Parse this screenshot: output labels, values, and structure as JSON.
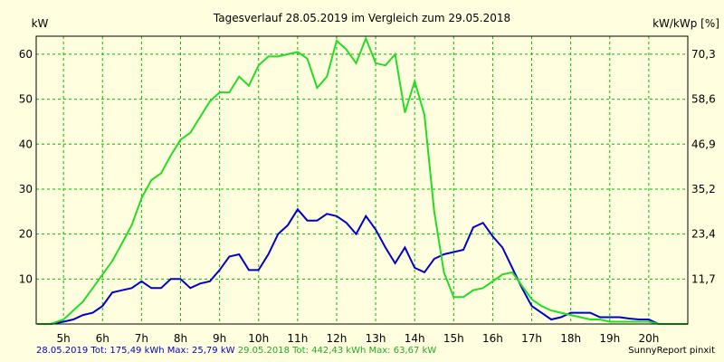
{
  "chart_data": {
    "type": "line",
    "title": "Tagesverlauf 28.05.2019 im Vergleich zum 29.05.2018",
    "ylabel_left": "kW",
    "ylabel_right": "kW/kWp [%]",
    "ylim": [
      0,
      64
    ],
    "y_ticks": [
      10,
      20,
      30,
      40,
      50,
      60
    ],
    "y2_ticks": [
      "11,7",
      "23,4",
      "35,2",
      "46,9",
      "58,6",
      "70,3"
    ],
    "xlim": [
      4.3,
      21.0
    ],
    "x_ticks": [
      5,
      6,
      7,
      8,
      9,
      10,
      11,
      12,
      13,
      14,
      15,
      16,
      17,
      18,
      19,
      20
    ],
    "x_tick_labels": [
      "5h",
      "6h",
      "7h",
      "8h",
      "9h",
      "10h",
      "11h",
      "12h",
      "13h",
      "14h",
      "15h",
      "16h",
      "17h",
      "18h",
      "19h",
      "20h"
    ],
    "grid": true,
    "series": [
      {
        "name": "28.05.2019",
        "color": "#0000cc",
        "x": [
          4.33,
          4.67,
          5.0,
          5.25,
          5.5,
          5.75,
          6.0,
          6.25,
          6.5,
          6.75,
          7.0,
          7.25,
          7.5,
          7.75,
          8.0,
          8.25,
          8.5,
          8.75,
          9.0,
          9.25,
          9.5,
          9.75,
          10.0,
          10.25,
          10.5,
          10.75,
          11.0,
          11.25,
          11.5,
          11.75,
          12.0,
          12.25,
          12.5,
          12.75,
          13.0,
          13.25,
          13.5,
          13.75,
          14.0,
          14.25,
          14.5,
          14.75,
          15.0,
          15.25,
          15.5,
          15.75,
          16.0,
          16.25,
          16.5,
          16.75,
          17.0,
          17.25,
          17.5,
          17.75,
          18.0,
          18.25,
          18.5,
          18.75,
          19.0,
          19.25,
          19.5,
          19.75,
          20.0,
          20.25,
          20.5,
          20.75,
          21.0
        ],
        "values": [
          0,
          0,
          0.5,
          1,
          2,
          2.5,
          4,
          7,
          7.5,
          8,
          9.5,
          8,
          8,
          10,
          10,
          8,
          9,
          9.5,
          12,
          15,
          15.5,
          12,
          12,
          15.5,
          20,
          22,
          25.5,
          23,
          23,
          24.5,
          24,
          22.5,
          20,
          24,
          21,
          17,
          13.5,
          17,
          12.5,
          11.5,
          14.5,
          15.5,
          16,
          16.5,
          21.5,
          22.5,
          19.5,
          17,
          12.5,
          8,
          4,
          2.5,
          1,
          1.5,
          2.5,
          2.5,
          2.5,
          1.5,
          1.5,
          1.5,
          1.2,
          1,
          1,
          0,
          0,
          0,
          0
        ]
      },
      {
        "name": "29.05.2018",
        "color": "#22dd22",
        "x": [
          4.33,
          4.67,
          5.0,
          5.25,
          5.5,
          5.75,
          6.0,
          6.25,
          6.5,
          6.75,
          7.0,
          7.25,
          7.5,
          7.75,
          8.0,
          8.25,
          8.5,
          8.75,
          9.0,
          9.25,
          9.5,
          9.75,
          10.0,
          10.25,
          10.5,
          10.75,
          11.0,
          11.25,
          11.5,
          11.75,
          12.0,
          12.25,
          12.5,
          12.75,
          13.0,
          13.25,
          13.5,
          13.75,
          14.0,
          14.25,
          14.5,
          14.75,
          15.0,
          15.25,
          15.5,
          15.75,
          16.0,
          16.25,
          16.5,
          16.75,
          17.0,
          17.25,
          17.5,
          17.75,
          18.0,
          18.25,
          18.5,
          18.75,
          19.0,
          19.25,
          19.5,
          19.75,
          20.0,
          20.25,
          20.5,
          20.75,
          21.0
        ],
        "values": [
          0,
          0,
          1,
          3,
          5,
          8,
          11,
          14,
          18,
          22,
          28,
          32,
          33.5,
          37.5,
          41,
          42.5,
          46,
          49.5,
          51.5,
          51.5,
          55,
          53,
          57.5,
          59.5,
          59.5,
          60,
          60.5,
          59,
          52.5,
          55,
          63,
          61,
          58,
          63.5,
          58,
          57.5,
          60,
          47,
          54,
          46.5,
          25,
          11.5,
          6,
          6,
          7.5,
          8,
          9.5,
          11,
          11.5,
          8.5,
          5.5,
          4,
          3,
          2.5,
          2,
          1.5,
          1,
          1,
          0.5,
          0.5,
          0.5,
          0.5,
          0.5,
          0,
          0,
          0,
          0
        ]
      }
    ]
  },
  "footer": {
    "s1_label": "28.05.2019 Tot: 175,49 kWh Max: 25,79 kW",
    "s2_label": "29.05.2018 Tot: 442,43 kWh Max: 63,67 kW",
    "credit": "SunnyReport pinxit"
  }
}
